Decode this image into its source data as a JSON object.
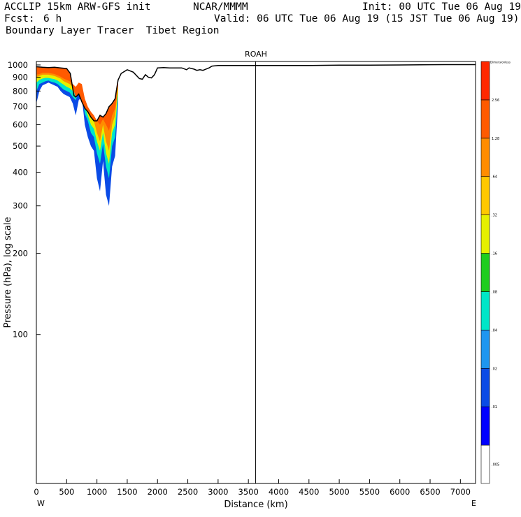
{
  "header": {
    "model": "ACCLIP 15km ARW-GFS init",
    "org": "NCAR/MMMM",
    "init": "Init: 00 UTC Tue 06 Aug 19",
    "fcst_label": "Fcst:",
    "fcst_value": "6 h",
    "valid": "Valid: 06 UTC Tue 06 Aug 19 (15 JST Tue 06 Aug 19)",
    "field": "Boundary Layer Tracer  Tibet Region"
  },
  "chart_data": {
    "type": "vertical cross-section",
    "title": "ROAH",
    "xlabel": "Distance (km)",
    "ylabel": "Pressure (hPa), log scale",
    "x_start_label": "W",
    "x_end_label": "E",
    "xlim": [
      0,
      7250
    ],
    "ylim": [
      1030,
      28
    ],
    "x_ticks": [
      0,
      500,
      1000,
      1500,
      2000,
      2500,
      3000,
      3500,
      4000,
      4500,
      5000,
      5500,
      6000,
      6500,
      7000
    ],
    "y_ticks": [
      100,
      200,
      300,
      400,
      500,
      600,
      700,
      800,
      900,
      1000
    ],
    "marker_line_km": 3620,
    "colorbar": {
      "top_label": "Dimensionless",
      "labels": [
        ".005",
        ".01",
        ".02",
        ".04",
        ".08",
        ".16",
        ".32",
        ".64",
        "1.28",
        "2.56"
      ],
      "colors": [
        "#ffffff",
        "#0000ff",
        "#0a4be6",
        "#1e96f0",
        "#00e6c8",
        "#1ecd1e",
        "#e6f000",
        "#ffc800",
        "#ff8c00",
        "#ff5a00",
        "#ff2800"
      ]
    },
    "terrain": {
      "x_km": [
        0,
        100,
        200,
        300,
        400,
        500,
        560,
        620,
        650,
        700,
        750,
        800,
        850,
        900,
        950,
        1000,
        1050,
        1100,
        1150,
        1200,
        1250,
        1300,
        1320,
        1350,
        1400,
        1500,
        1600,
        1700,
        1750,
        1800,
        1850,
        1900,
        1950,
        2000,
        2100,
        2200,
        2300,
        2400,
        2480,
        2520,
        2600,
        2650,
        2700,
        2750,
        2800,
        2850,
        2900,
        3000,
        3500,
        4000,
        4500,
        5000,
        5500,
        6000,
        6500,
        7000,
        7250
      ],
      "p_hpa": [
        985,
        980,
        978,
        980,
        975,
        970,
        930,
        770,
        760,
        780,
        730,
        690,
        670,
        640,
        620,
        620,
        650,
        640,
        660,
        700,
        720,
        750,
        800,
        880,
        930,
        960,
        940,
        890,
        885,
        920,
        900,
        895,
        920,
        975,
        978,
        975,
        975,
        975,
        960,
        975,
        965,
        955,
        960,
        955,
        965,
        975,
        990,
        995,
        995,
        995,
        995,
        998,
        998,
        1000,
        1002,
        1003,
        1003
      ]
    },
    "tracer": {
      "x_km": [
        0,
        50,
        100,
        150,
        200,
        250,
        300,
        350,
        400,
        450,
        500,
        550,
        600,
        650,
        700,
        750,
        800,
        850,
        900,
        950,
        1000,
        1050,
        1100,
        1150,
        1200,
        1250,
        1300,
        1350
      ],
      "levels": [
        {
          "threshold": 0.01,
          "top_hpa": [
            720,
            800,
            840,
            850,
            860,
            850,
            840,
            830,
            800,
            780,
            770,
            760,
            720,
            650,
            740,
            760,
            600,
            540,
            500,
            480,
            380,
            340,
            440,
            330,
            300,
            420,
            460,
            720
          ]
        },
        {
          "threshold": 0.04,
          "top_hpa": [
            800,
            850,
            860,
            870,
            875,
            865,
            860,
            850,
            830,
            810,
            800,
            790,
            760,
            740,
            800,
            800,
            660,
            620,
            560,
            540,
            470,
            430,
            510,
            420,
            380,
            500,
            540,
            760
          ]
        },
        {
          "threshold": 0.16,
          "top_hpa": [
            860,
            880,
            890,
            895,
            895,
            890,
            885,
            875,
            860,
            845,
            830,
            820,
            800,
            780,
            830,
            820,
            700,
            650,
            600,
            580,
            520,
            480,
            560,
            470,
            430,
            560,
            600,
            790
          ]
        },
        {
          "threshold": 0.64,
          "top_hpa": [
            900,
            910,
            920,
            920,
            920,
            915,
            910,
            900,
            890,
            870,
            860,
            850,
            830,
            810,
            850,
            840,
            740,
            690,
            640,
            620,
            560,
            520,
            600,
            520,
            480,
            600,
            650,
            830
          ]
        },
        {
          "threshold": 1.28,
          "top_hpa": [
            920,
            925,
            935,
            935,
            935,
            930,
            925,
            915,
            905,
            890,
            880,
            870,
            850,
            830,
            860,
            850,
            750,
            700,
            670,
            650,
            620,
            600,
            630,
            600,
            570,
            650,
            690,
            840
          ]
        }
      ]
    }
  }
}
